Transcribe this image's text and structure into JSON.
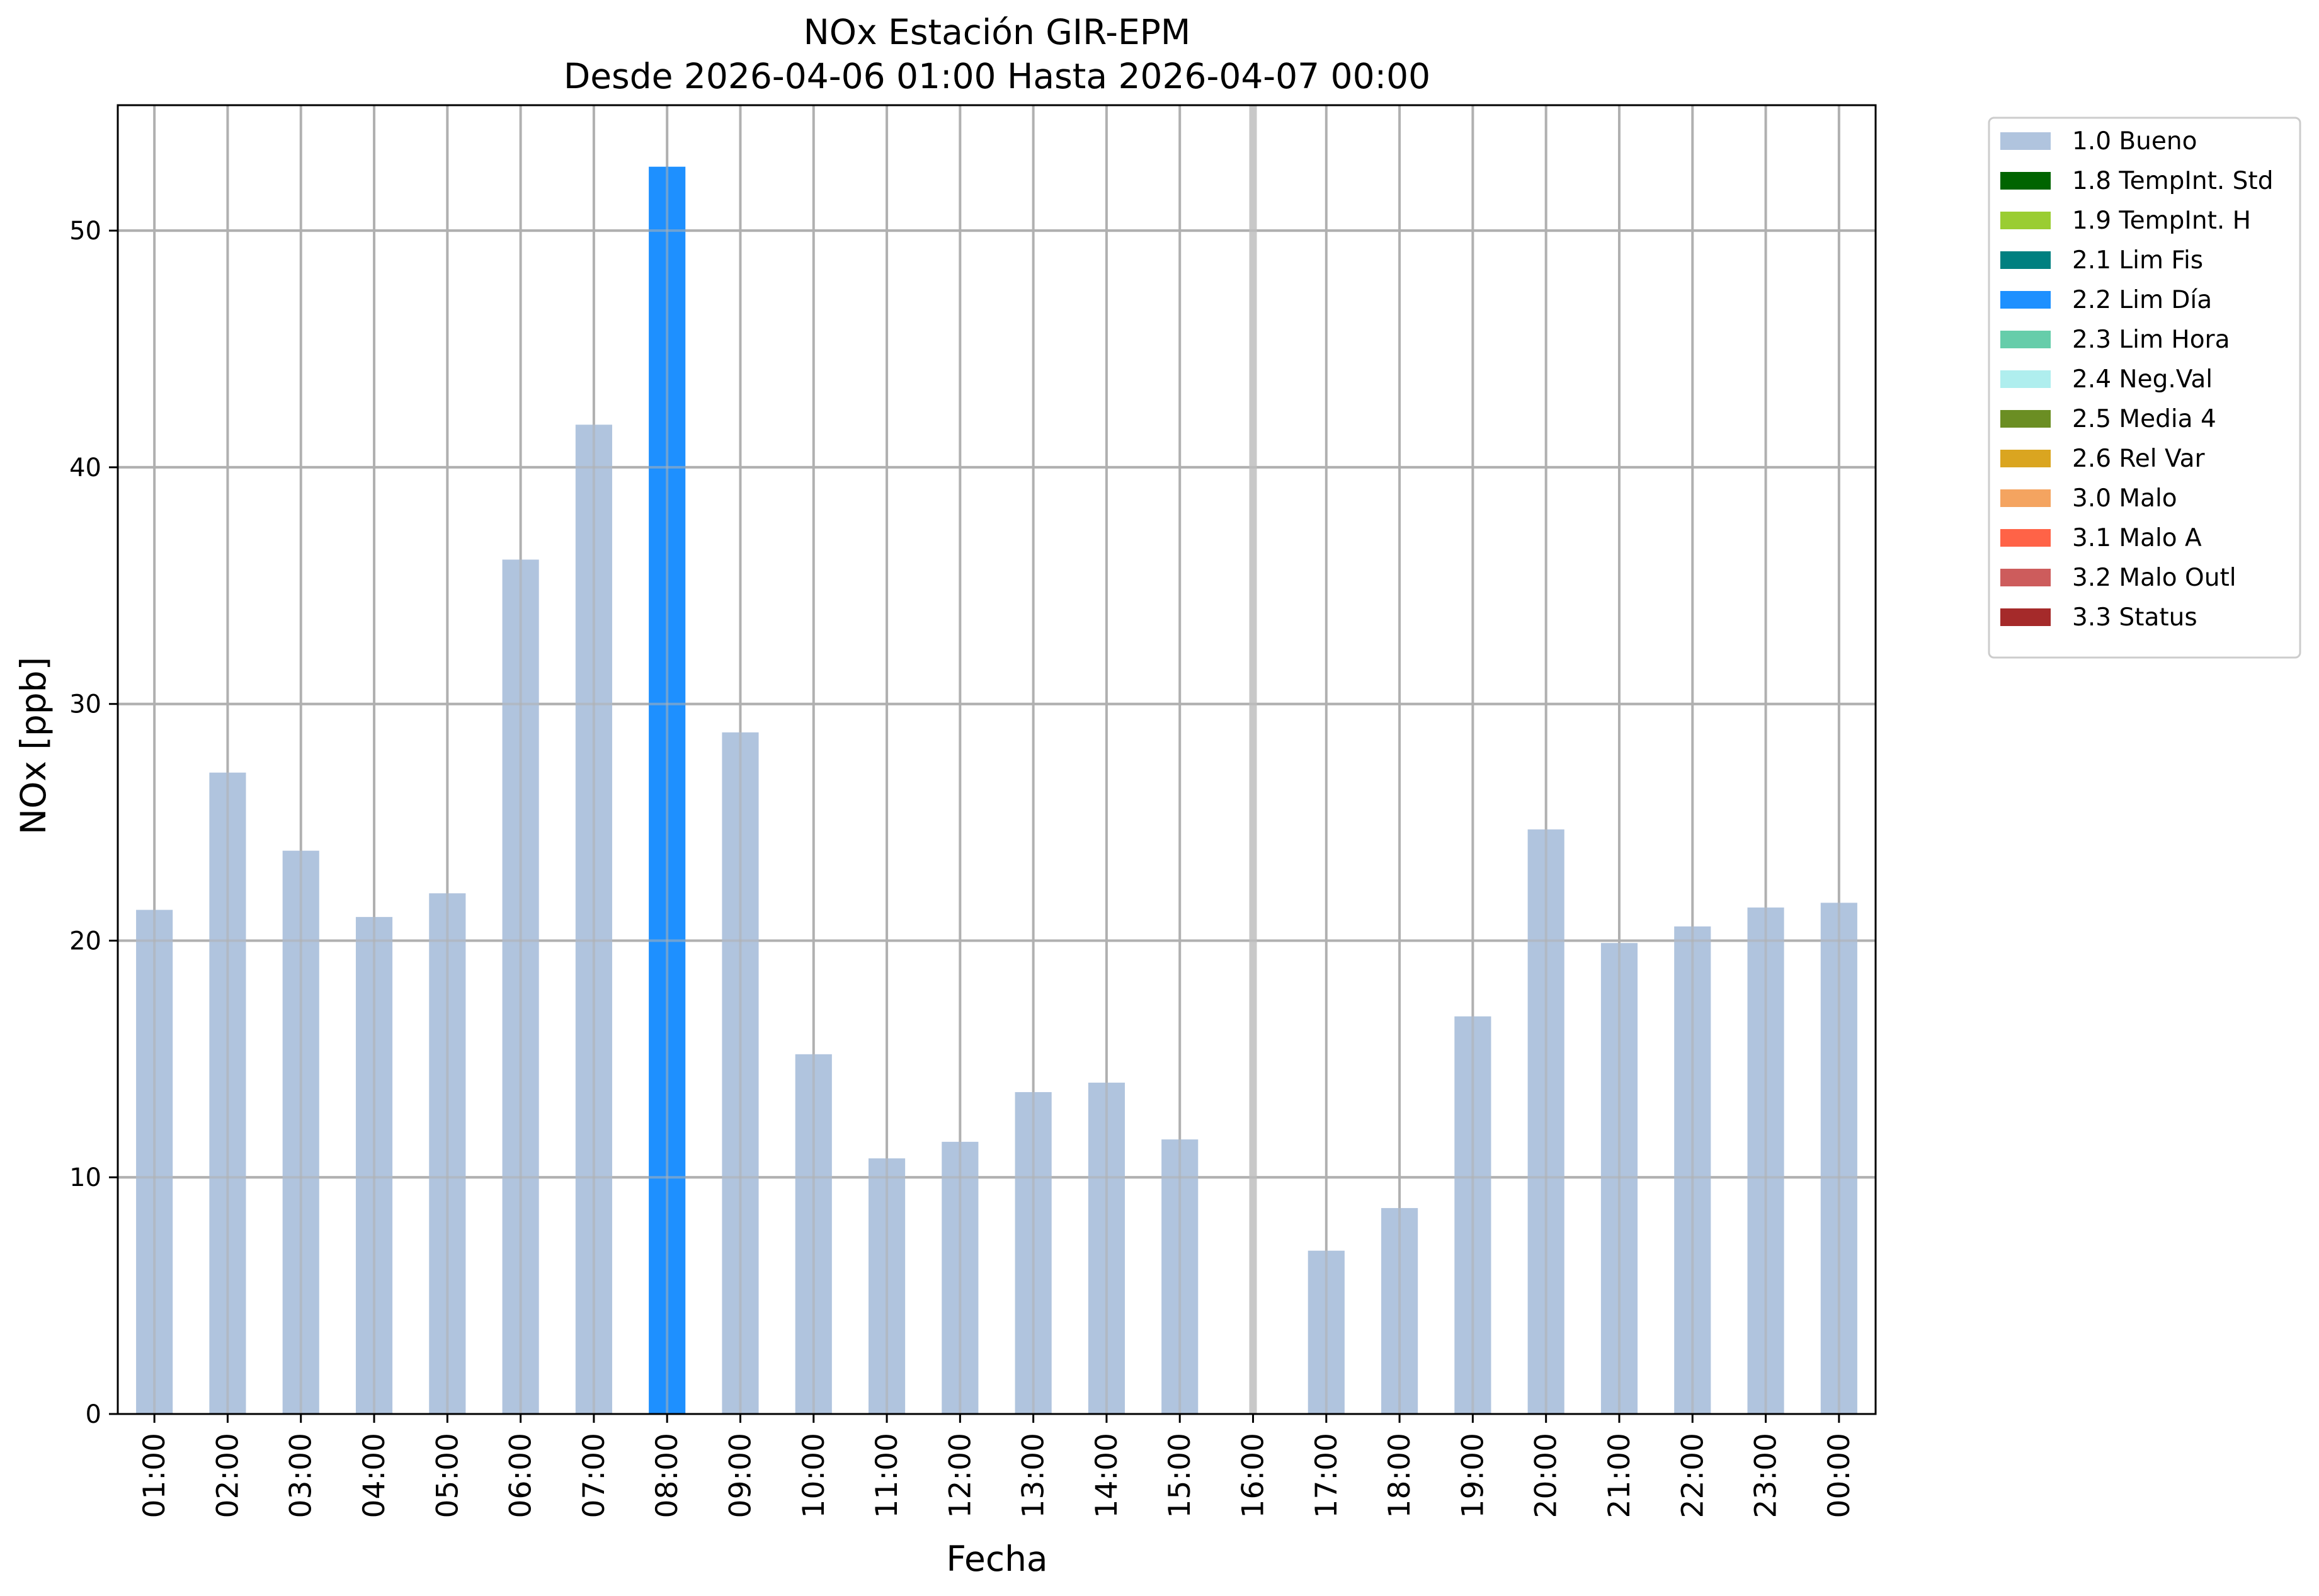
{
  "chart_data": {
    "type": "bar",
    "title": "NOx Estación GIR-EPM",
    "subtitle": "Desde 2026-04-06 01:00 Hasta 2026-04-07 00:00",
    "xlabel": "Fecha",
    "ylabel": "NOx [ppb]",
    "ylim": [
      0,
      55.3
    ],
    "yticks": [
      0,
      10,
      20,
      30,
      40,
      50
    ],
    "grid": true,
    "legend_placement": "outside-top-right",
    "categories": [
      "01:00",
      "02:00",
      "03:00",
      "04:00",
      "05:00",
      "06:00",
      "07:00",
      "08:00",
      "09:00",
      "10:00",
      "11:00",
      "12:00",
      "13:00",
      "14:00",
      "15:00",
      "16:00",
      "17:00",
      "18:00",
      "19:00",
      "20:00",
      "21:00",
      "22:00",
      "23:00",
      "00:00"
    ],
    "values": [
      21.3,
      27.1,
      23.8,
      21.0,
      22.0,
      36.1,
      41.8,
      52.7,
      28.8,
      15.2,
      10.8,
      11.5,
      13.6,
      14.0,
      11.6,
      null,
      6.9,
      8.7,
      16.8,
      24.7,
      19.9,
      20.6,
      21.4,
      21.6
    ],
    "flags": [
      "1.0 Bueno",
      "1.0 Bueno",
      "1.0 Bueno",
      "1.0 Bueno",
      "1.0 Bueno",
      "1.0 Bueno",
      "1.0 Bueno",
      "2.2 Lim Día",
      "1.0 Bueno",
      "1.0 Bueno",
      "1.0 Bueno",
      "1.0 Bueno",
      "1.0 Bueno",
      "1.0 Bueno",
      "1.0 Bueno",
      null,
      "1.0 Bueno",
      "1.0 Bueno",
      "1.0 Bueno",
      "1.0 Bueno",
      "1.0 Bueno",
      "1.0 Bueno",
      "1.0 Bueno",
      "1.0 Bueno"
    ],
    "missing_marker_category": "16:00",
    "missing_marker_color": "#c8c8c8",
    "legend": [
      {
        "label": "1.0 Bueno",
        "color": "#b0c4de"
      },
      {
        "label": "1.8 TempInt. Std",
        "color": "#006400"
      },
      {
        "label": "1.9 TempInt. H",
        "color": "#9acd32"
      },
      {
        "label": "2.1 Lim Fis",
        "color": "#008080"
      },
      {
        "label": "2.2 Lim Día",
        "color": "#1e90ff"
      },
      {
        "label": "2.3 Lim Hora",
        "color": "#66cdaa"
      },
      {
        "label": "2.4 Neg.Val",
        "color": "#afeeee"
      },
      {
        "label": "2.5 Media 4",
        "color": "#6b8e23"
      },
      {
        "label": "2.6 Rel Var",
        "color": "#daa520"
      },
      {
        "label": "3.0 Malo",
        "color": "#f4a460"
      },
      {
        "label": "3.1 Malo A",
        "color": "#ff6347"
      },
      {
        "label": "3.2 Malo Outl",
        "color": "#cd5c5c"
      },
      {
        "label": "3.3 Status",
        "color": "#a52a2a"
      }
    ]
  }
}
